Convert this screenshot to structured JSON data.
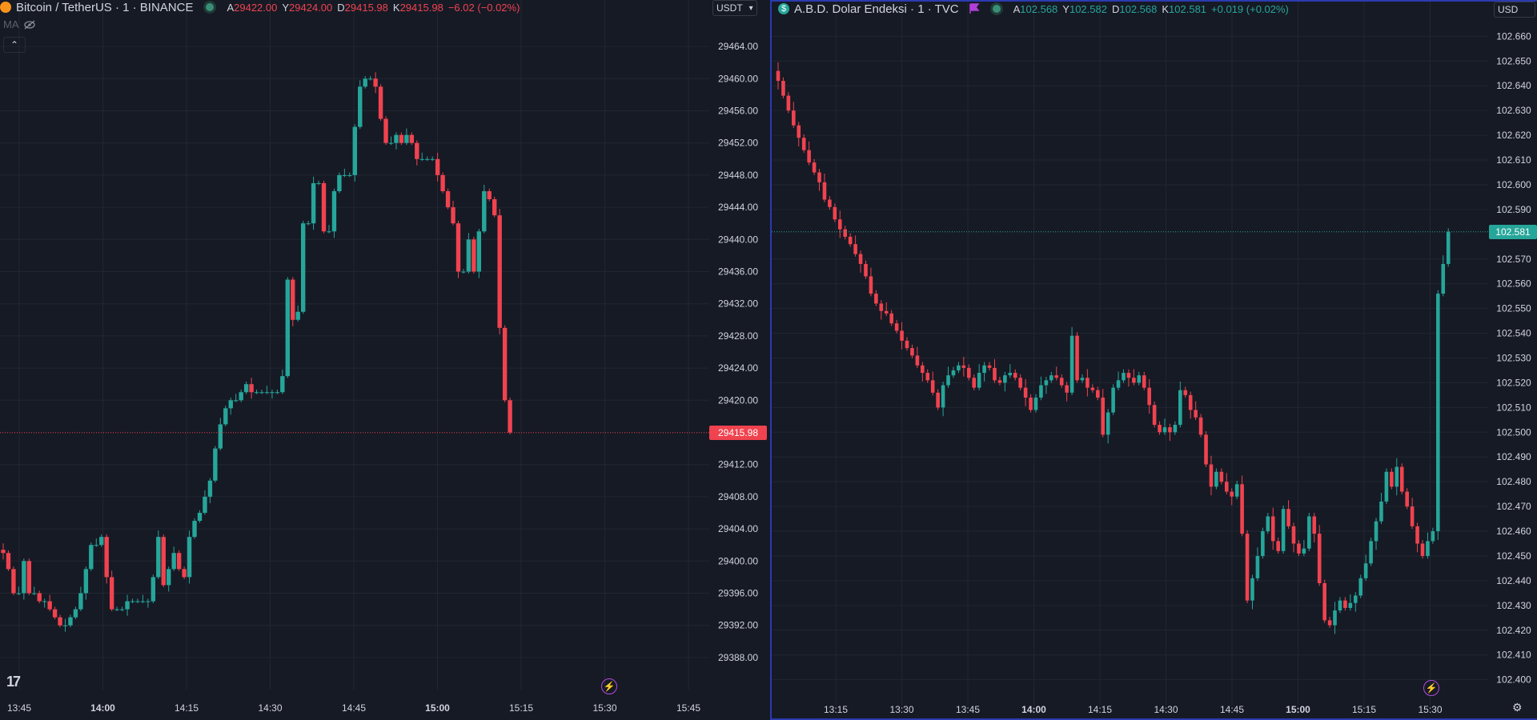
{
  "colors": {
    "up": "#26a69a",
    "down": "#f0434f",
    "bg": "#161a25",
    "grid": "#222631",
    "accent_border": "#2b3bb0",
    "flag": "#b13fd6"
  },
  "left": {
    "symbol": "Bitcoin / TetherUS · 1 · BINANCE",
    "logo_icon": "bitcoin-icon",
    "ohlc": {
      "o_label": "A",
      "o": "29422.00",
      "h_label": "Y",
      "h": "29424.00",
      "l_label": "D",
      "l": "29415.98",
      "c_label": "K",
      "c": "29415.98",
      "change": "−6.02 (−0.02%)"
    },
    "currency": "USDT",
    "indicator": "MA",
    "price_tag": "29415.98",
    "y_ticks": [
      "29464.00",
      "29460.00",
      "29456.00",
      "29452.00",
      "29448.00",
      "29444.00",
      "29440.00",
      "29436.00",
      "29432.00",
      "29428.00",
      "29424.00",
      "29420.00",
      "29412.00",
      "29408.00",
      "29404.00",
      "29400.00",
      "29396.00",
      "29392.00",
      "29388.00"
    ],
    "x_ticks": [
      {
        "t": "13:45",
        "b": false
      },
      {
        "t": "14:00",
        "b": true
      },
      {
        "t": "14:15",
        "b": false
      },
      {
        "t": "14:30",
        "b": false
      },
      {
        "t": "14:45",
        "b": false
      },
      {
        "t": "15:00",
        "b": true
      },
      {
        "t": "15:15",
        "b": false
      },
      {
        "t": "15:30",
        "b": false
      },
      {
        "t": "15:45",
        "b": false
      }
    ]
  },
  "right": {
    "symbol": "A.B.D. Dolar Endeksi · 1 · TVC",
    "logo_icon": "dollar-icon",
    "logo_text": "$",
    "ohlc": {
      "o_label": "A",
      "o": "102.568",
      "h_label": "Y",
      "h": "102.582",
      "l_label": "D",
      "l": "102.568",
      "c_label": "K",
      "c": "102.581",
      "change": "+0.019 (+0.02%)"
    },
    "currency": "USD",
    "price_tag": "102.581",
    "y_ticks": [
      "102.660",
      "102.650",
      "102.640",
      "102.630",
      "102.620",
      "102.610",
      "102.600",
      "102.590",
      "102.570",
      "102.560",
      "102.550",
      "102.540",
      "102.530",
      "102.520",
      "102.510",
      "102.500",
      "102.490",
      "102.480",
      "102.470",
      "102.460",
      "102.450",
      "102.440",
      "102.430",
      "102.420",
      "102.410",
      "102.400"
    ],
    "x_ticks": [
      {
        "t": "13:15",
        "b": false
      },
      {
        "t": "13:30",
        "b": false
      },
      {
        "t": "13:45",
        "b": false
      },
      {
        "t": "14:00",
        "b": true
      },
      {
        "t": "14:15",
        "b": false
      },
      {
        "t": "14:30",
        "b": false
      },
      {
        "t": "14:45",
        "b": false
      },
      {
        "t": "15:00",
        "b": true
      },
      {
        "t": "15:15",
        "b": false
      },
      {
        "t": "15:30",
        "b": false
      }
    ]
  },
  "chart_data": [
    {
      "type": "candlestick",
      "title": "Bitcoin / TetherUS · 1 · BINANCE",
      "ylim": [
        29386,
        29466
      ],
      "closes": [
        29401,
        29399,
        29396,
        29396,
        29400,
        29396,
        29396,
        29395,
        29395,
        29394,
        29393,
        29392,
        29392,
        29393,
        29394,
        29396,
        29399,
        29402,
        29402,
        29403,
        29398,
        29394,
        29394,
        29394,
        29395,
        29395,
        29395,
        29395,
        29395,
        29398,
        29403,
        29397,
        29399,
        29401,
        29399,
        29398,
        29403,
        29405,
        29406,
        29408,
        29410,
        29414,
        29417,
        29419,
        29420,
        29420,
        29421,
        29422,
        29421,
        29421,
        29421,
        29421,
        29421,
        29421,
        29423,
        29435,
        29430,
        29431,
        29442,
        29442,
        29447,
        29447,
        29441,
        29441,
        29446,
        29448,
        29448,
        29448,
        29454,
        29459,
        29460,
        29460,
        29459,
        29455,
        29452,
        29452,
        29453,
        29452,
        29453,
        29452,
        29450,
        29450,
        29450,
        29450,
        29448,
        29446,
        29444,
        29442,
        29436,
        29436,
        29440,
        29436,
        29441,
        29446,
        29445,
        29443,
        29429,
        29420,
        29415.98
      ]
    },
    {
      "type": "candlestick",
      "title": "A.B.D. Dolar Endeksi · 1 · TVC",
      "ylim": [
        102.396,
        102.664
      ],
      "closes": [
        102.642,
        102.636,
        102.63,
        102.624,
        102.619,
        102.614,
        102.609,
        102.605,
        102.601,
        102.594,
        102.591,
        102.586,
        102.582,
        102.579,
        102.576,
        102.572,
        102.568,
        102.563,
        102.556,
        102.552,
        102.549,
        102.548,
        102.544,
        102.541,
        102.537,
        102.534,
        102.531,
        102.527,
        102.524,
        102.521,
        102.516,
        102.51,
        102.519,
        102.523,
        102.525,
        102.527,
        102.526,
        102.522,
        102.518,
        102.524,
        102.527,
        102.526,
        102.521,
        102.52,
        102.523,
        102.524,
        102.522,
        102.518,
        102.514,
        102.509,
        102.514,
        102.519,
        102.521,
        102.523,
        102.522,
        102.519,
        102.516,
        102.539,
        102.521,
        102.522,
        102.518,
        102.517,
        102.514,
        102.499,
        102.508,
        102.518,
        102.521,
        102.524,
        102.522,
        102.52,
        102.523,
        102.518,
        102.511,
        102.503,
        102.5,
        102.502,
        102.5,
        102.503,
        102.517,
        102.515,
        102.509,
        102.506,
        102.499,
        102.487,
        102.478,
        102.484,
        102.48,
        102.476,
        102.474,
        102.479,
        102.459,
        102.432,
        102.441,
        102.45,
        102.46,
        102.466,
        102.456,
        102.452,
        102.469,
        102.462,
        102.455,
        102.451,
        102.453,
        102.466,
        102.459,
        102.439,
        102.424,
        102.422,
        102.428,
        102.432,
        102.429,
        102.431,
        102.434,
        102.441,
        102.447,
        102.456,
        102.464,
        102.472,
        102.484,
        102.478,
        102.486,
        102.476,
        102.47,
        102.462,
        102.455,
        102.45,
        102.456,
        102.46,
        102.556,
        102.568,
        102.581
      ]
    }
  ]
}
